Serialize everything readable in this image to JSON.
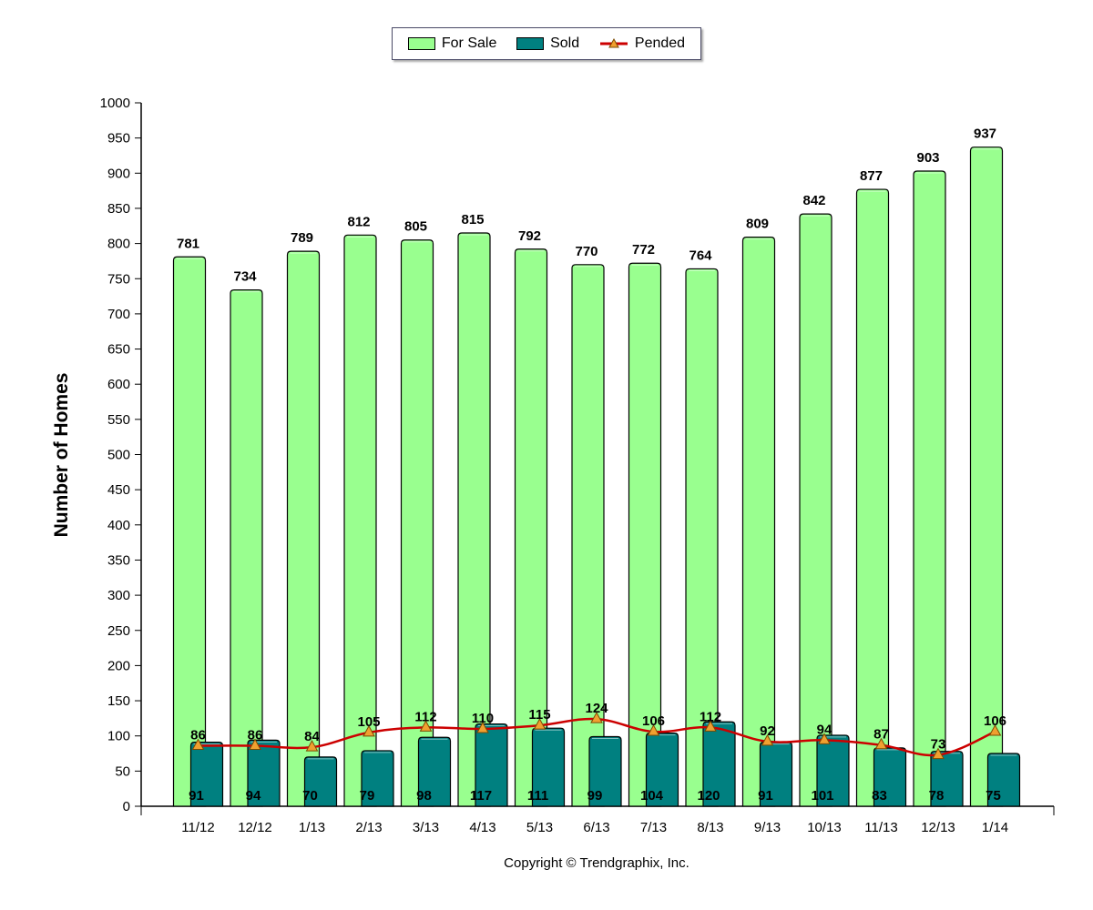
{
  "legend": {
    "for_sale": "For Sale",
    "sold": "Sold",
    "pended": "Pended"
  },
  "colors": {
    "for_sale": "#99ff8f",
    "sold": "#008080",
    "pended_line": "#cc0000",
    "pended_marker": "#f0a030"
  },
  "copyright": "Copyright © Trendgraphix, Inc.",
  "chart_data": {
    "type": "bar",
    "title": "",
    "xlabel": "",
    "ylabel": "Number of Homes",
    "ylim": [
      0,
      1000
    ],
    "ytick_step": 50,
    "categories": [
      "11/12",
      "12/12",
      "1/13",
      "2/13",
      "3/13",
      "4/13",
      "5/13",
      "6/13",
      "7/13",
      "8/13",
      "9/13",
      "10/13",
      "11/13",
      "12/13",
      "1/14"
    ],
    "series": [
      {
        "name": "For Sale",
        "type": "bar",
        "values": [
          781,
          734,
          789,
          812,
          805,
          815,
          792,
          770,
          772,
          764,
          809,
          842,
          877,
          903,
          937
        ]
      },
      {
        "name": "Sold",
        "type": "bar",
        "values": [
          91,
          94,
          70,
          79,
          98,
          117,
          111,
          99,
          104,
          120,
          91,
          101,
          83,
          78,
          75
        ]
      },
      {
        "name": "Pended",
        "type": "line",
        "values": [
          86,
          86,
          84,
          105,
          112,
          110,
          115,
          124,
          106,
          112,
          92,
          94,
          87,
          73,
          106
        ]
      }
    ],
    "legend_position": "top-center",
    "grid": false
  }
}
